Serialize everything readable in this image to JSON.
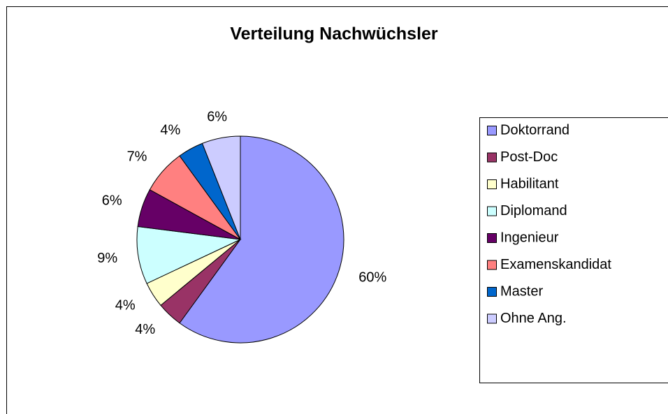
{
  "chart_data": {
    "type": "pie",
    "title": "Verteilung Nachwüchsler",
    "categories": [
      "Doktorrand",
      "Post-Doc",
      "Habilitant",
      "Diplomand",
      "Ingenieur",
      "Examenskandidat",
      "Master",
      "Ohne Ang."
    ],
    "values": [
      60,
      4,
      4,
      9,
      6,
      7,
      4,
      6
    ],
    "value_labels": [
      "60%",
      "4%",
      "4%",
      "9%",
      "6%",
      "7%",
      "4%",
      "6%"
    ],
    "colors": [
      "#9999ff",
      "#993366",
      "#ffffcc",
      "#ccffff",
      "#660066",
      "#ff8080",
      "#0066cc",
      "#ccccff"
    ],
    "legend": "right"
  }
}
